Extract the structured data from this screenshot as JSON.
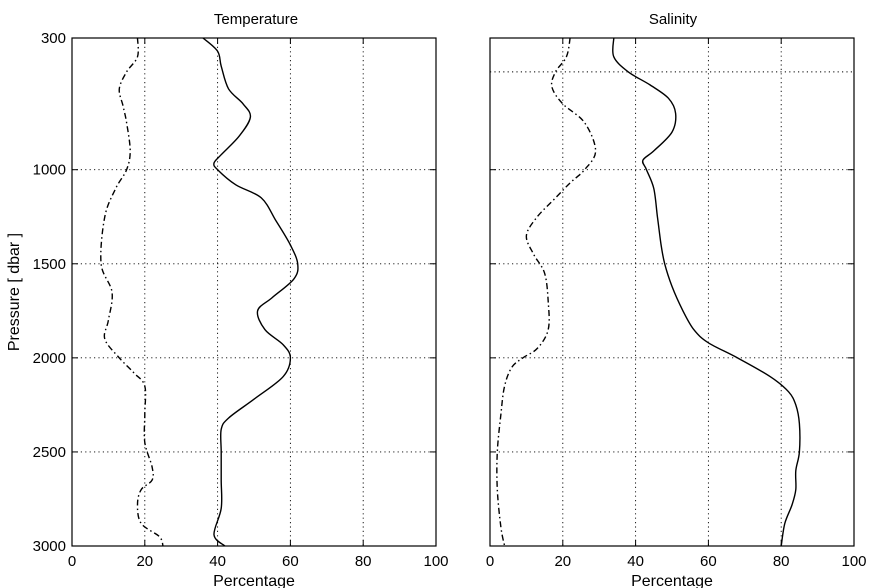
{
  "chart_data": [
    {
      "type": "line",
      "title": "Temperature",
      "xlabel": "Percentage",
      "ylabel": "Pressure  [ dbar ]",
      "xlim": [
        0,
        100
      ],
      "ylim": [
        3000,
        300
      ],
      "y_reversed": true,
      "grid": true,
      "xticks": [
        "0",
        "20",
        "40",
        "60",
        "80",
        "100"
      ],
      "yticks": [
        "300",
        "1000",
        "1500",
        "2000",
        "2500",
        "3000"
      ],
      "series": [
        {
          "style": "solid",
          "points": [
            [
              36,
              300
            ],
            [
              40,
              370
            ],
            [
              41,
              450
            ],
            [
              43,
              570
            ],
            [
              47,
              650
            ],
            [
              49,
              720
            ],
            [
              46,
              820
            ],
            [
              41,
              920
            ],
            [
              39,
              965
            ],
            [
              40,
              1000
            ],
            [
              45,
              1080
            ],
            [
              52,
              1150
            ],
            [
              56,
              1270
            ],
            [
              60,
              1400
            ],
            [
              62,
              1500
            ],
            [
              61,
              1580
            ],
            [
              55,
              1680
            ],
            [
              51,
              1750
            ],
            [
              53,
              1850
            ],
            [
              58,
              1930
            ],
            [
              60,
              2000
            ],
            [
              58,
              2100
            ],
            [
              50,
              2220
            ],
            [
              43,
              2320
            ],
            [
              41,
              2380
            ],
            [
              41,
              2500
            ],
            [
              41,
              2650
            ],
            [
              41,
              2800
            ],
            [
              39,
              2940
            ],
            [
              42,
              3000
            ]
          ]
        },
        {
          "style": "dashdot",
          "points": [
            [
              18,
              300
            ],
            [
              18,
              400
            ],
            [
              15,
              480
            ],
            [
              13,
              570
            ],
            [
              14,
              660
            ],
            [
              15,
              750
            ],
            [
              16,
              900
            ],
            [
              15,
              1000
            ],
            [
              12,
              1100
            ],
            [
              9,
              1250
            ],
            [
              8,
              1500
            ],
            [
              11,
              1650
            ],
            [
              10,
              1800
            ],
            [
              9,
              1900
            ],
            [
              13,
              2000
            ],
            [
              17,
              2080
            ],
            [
              20,
              2150
            ],
            [
              20,
              2300
            ],
            [
              20,
              2450
            ],
            [
              22,
              2580
            ],
            [
              22,
              2650
            ],
            [
              19,
              2700
            ],
            [
              18,
              2780
            ],
            [
              19,
              2880
            ],
            [
              24,
              2950
            ],
            [
              25,
              3000
            ]
          ]
        }
      ]
    },
    {
      "type": "line",
      "title": "Salinity",
      "xlabel": "Percentage",
      "ylabel": "",
      "xlim": [
        0,
        100
      ],
      "ylim": [
        3000,
        300
      ],
      "y_reversed": true,
      "grid": true,
      "xticks": [
        "0",
        "20",
        "40",
        "60",
        "80",
        "100"
      ],
      "yticks": [
        "300",
        "1000",
        "1500",
        "2000",
        "2500",
        "3000"
      ],
      "extra_grid_y": [
        480
      ],
      "series": [
        {
          "style": "solid",
          "points": [
            [
              34,
              300
            ],
            [
              34,
              400
            ],
            [
              38,
              480
            ],
            [
              44,
              550
            ],
            [
              49,
              620
            ],
            [
              51,
              700
            ],
            [
              50,
              800
            ],
            [
              45,
              900
            ],
            [
              42,
              950
            ],
            [
              43,
              1000
            ],
            [
              45,
              1100
            ],
            [
              46,
              1250
            ],
            [
              47,
              1400
            ],
            [
              48,
              1500
            ],
            [
              50,
              1620
            ],
            [
              53,
              1750
            ],
            [
              56,
              1850
            ],
            [
              60,
              1920
            ],
            [
              68,
              2000
            ],
            [
              77,
              2100
            ],
            [
              82,
              2180
            ],
            [
              84,
              2250
            ],
            [
              85,
              2350
            ],
            [
              85,
              2500
            ],
            [
              84,
              2600
            ],
            [
              84,
              2700
            ],
            [
              83,
              2780
            ],
            [
              81,
              2880
            ],
            [
              80,
              3000
            ]
          ]
        },
        {
          "style": "dashdot",
          "points": [
            [
              22,
              300
            ],
            [
              21,
              400
            ],
            [
              18,
              480
            ],
            [
              17,
              560
            ],
            [
              20,
              650
            ],
            [
              26,
              750
            ],
            [
              29,
              900
            ],
            [
              26,
              1000
            ],
            [
              22,
              1070
            ],
            [
              18,
              1150
            ],
            [
              13,
              1250
            ],
            [
              10,
              1350
            ],
            [
              12,
              1450
            ],
            [
              15,
              1550
            ],
            [
              16,
              1700
            ],
            [
              16,
              1850
            ],
            [
              13,
              1950
            ],
            [
              9,
              2000
            ],
            [
              6,
              2050
            ],
            [
              4,
              2150
            ],
            [
              3,
              2300
            ],
            [
              2,
              2500
            ],
            [
              2,
              2700
            ],
            [
              3,
              2900
            ],
            [
              4,
              3000
            ]
          ]
        }
      ]
    }
  ]
}
